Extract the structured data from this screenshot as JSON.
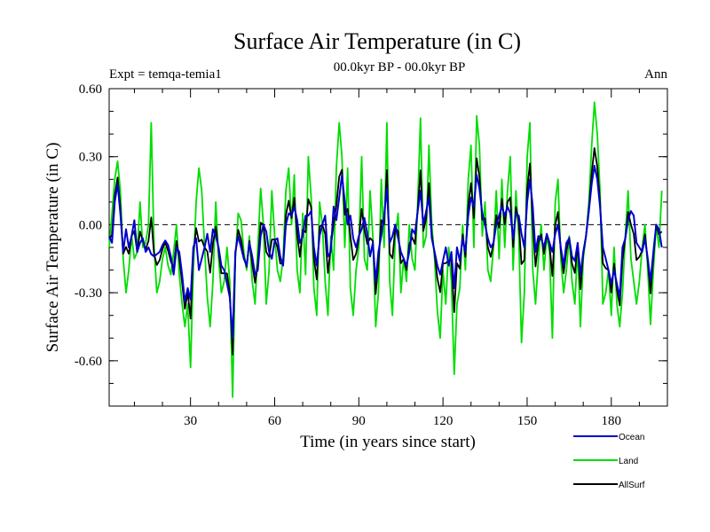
{
  "chart_data": {
    "type": "line",
    "title": "Surface Air Temperature (in C)",
    "subtitle": "00.0kyr BP - 00.0kyr BP",
    "left_label": "Expt = temqa-temia1",
    "right_label": "Ann",
    "xlabel": "Time (in years since start)",
    "ylabel": "Surface Air Temperature (in C)",
    "xlim": [
      1,
      200
    ],
    "ylim": [
      -0.8,
      0.6
    ],
    "xticks": [
      30,
      60,
      90,
      120,
      150,
      180
    ],
    "yticks": [
      0.6,
      0.3,
      0.0,
      -0.3,
      -0.6
    ],
    "ytick_labels": [
      "0.60",
      "0.30",
      "0.00",
      "-0.30",
      "-0.60"
    ],
    "reference_line": 0.0,
    "legend_position": "bottom-right",
    "series": [
      {
        "name": "Ocean",
        "color": "#0000cc"
      },
      {
        "name": "Land",
        "color": "#00dd00"
      },
      {
        "name": "AllSurf",
        "color": "#000000"
      }
    ],
    "x": [
      1,
      2,
      3,
      4,
      5,
      6,
      7,
      8,
      9,
      10,
      11,
      12,
      13,
      14,
      15,
      16,
      17,
      18,
      19,
      20,
      21,
      22,
      23,
      24,
      25,
      26,
      27,
      28,
      29,
      30,
      31,
      32,
      33,
      34,
      35,
      36,
      37,
      38,
      39,
      40,
      41,
      42,
      43,
      44,
      45,
      46,
      47,
      48,
      49,
      50,
      51,
      52,
      53,
      54,
      55,
      56,
      57,
      58,
      59,
      60,
      61,
      62,
      63,
      64,
      65,
      66,
      67,
      68,
      69,
      70,
      71,
      72,
      73,
      74,
      75,
      76,
      77,
      78,
      79,
      80,
      81,
      82,
      83,
      84,
      85,
      86,
      87,
      88,
      89,
      90,
      91,
      92,
      93,
      94,
      95,
      96,
      97,
      98,
      99,
      100,
      101,
      102,
      103,
      104,
      105,
      106,
      107,
      108,
      109,
      110,
      111,
      112,
      113,
      114,
      115,
      116,
      117,
      118,
      119,
      120,
      121,
      122,
      123,
      124,
      125,
      126,
      127,
      128,
      129,
      130,
      131,
      132,
      133,
      134,
      135,
      136,
      137,
      138,
      139,
      140,
      141,
      142,
      143,
      144,
      145,
      146,
      147,
      148,
      149,
      150,
      151,
      152,
      153,
      154,
      155,
      156,
      157,
      158,
      159,
      160,
      161,
      162,
      163,
      164,
      165,
      166,
      167,
      168,
      169,
      170,
      171,
      172,
      173,
      174,
      175,
      176,
      177,
      178,
      179,
      180,
      181,
      182,
      183,
      184,
      185,
      186,
      187,
      188,
      189,
      190,
      191,
      192,
      193,
      194,
      195,
      196,
      197,
      198,
      199,
      200
    ],
    "values": {
      "Ocean": [
        -0.05,
        -0.08,
        0.1,
        0.18,
        0.05,
        -0.12,
        -0.02,
        -0.1,
        -0.05,
        0.02,
        -0.12,
        -0.08,
        -0.06,
        -0.12,
        -0.1,
        -0.13,
        -0.14,
        -0.13,
        -0.12,
        -0.09,
        -0.07,
        -0.09,
        -0.14,
        -0.22,
        -0.1,
        -0.12,
        -0.22,
        -0.34,
        -0.28,
        -0.33,
        -0.1,
        -0.06,
        -0.2,
        -0.15,
        -0.1,
        -0.04,
        -0.12,
        -0.02,
        -0.05,
        -0.1,
        -0.18,
        -0.2,
        -0.26,
        -0.32,
        -0.5,
        -0.12,
        -0.05,
        -0.1,
        -0.15,
        -0.18,
        -0.08,
        -0.14,
        -0.22,
        -0.2,
        -0.05,
        0.0,
        -0.03,
        -0.12,
        -0.15,
        -0.07,
        -0.06,
        -0.14,
        -0.18,
        0.0,
        0.05,
        0.04,
        0.08,
        0.02,
        -0.08,
        -0.05,
        0.04,
        0.04,
        0.06,
        -0.1,
        -0.18,
        -0.05,
        0.0,
        0.04,
        -0.14,
        -0.12,
        0.08,
        0.02,
        0.12,
        0.22,
        0.1,
        0.0,
        0.04,
        -0.06,
        -0.1,
        -0.05,
        -0.02,
        0.03,
        -0.04,
        -0.14,
        -0.08,
        -0.25,
        -0.12,
        -0.05,
        0.04,
        0.16,
        -0.08,
        -0.05,
        0.0,
        -0.06,
        -0.12,
        -0.15,
        -0.18,
        -0.12,
        -0.02,
        -0.04,
        0.06,
        0.15,
        0.0,
        0.06,
        0.12,
        -0.06,
        -0.12,
        -0.18,
        -0.22,
        -0.16,
        -0.1,
        -0.18,
        -0.12,
        -0.28,
        -0.1,
        -0.16,
        -0.06,
        -0.12,
        0.04,
        0.12,
        0.08,
        0.22,
        0.16,
        0.05,
        0.0,
        -0.06,
        -0.1,
        -0.08,
        0.0,
        0.04,
        0.08,
        0.04,
        0.08,
        0.05,
        -0.06,
        0.05,
        0.04,
        -0.04,
        -0.1,
        0.1,
        0.2,
        0.08,
        -0.12,
        -0.05,
        -0.06,
        -0.1,
        -0.04,
        -0.08,
        -0.12,
        -0.04,
        0.0,
        -0.1,
        -0.18,
        -0.08,
        -0.06,
        -0.14,
        -0.16,
        -0.08,
        -0.22,
        -0.12,
        -0.05,
        0.06,
        0.18,
        0.26,
        0.2,
        0.08,
        -0.1,
        -0.15,
        -0.2,
        -0.26,
        -0.2,
        -0.26,
        -0.32,
        -0.1,
        -0.06,
        0.02,
        0.06,
        0.04,
        -0.08,
        -0.1,
        -0.12,
        -0.06,
        -0.15,
        -0.25,
        -0.12,
        0.0,
        -0.02,
        -0.1
      ],
      "Land": [
        -0.1,
        0.05,
        0.2,
        0.28,
        0.15,
        -0.15,
        -0.3,
        -0.2,
        -0.05,
        -0.15,
        -0.12,
        0.1,
        -0.1,
        -0.08,
        0.0,
        0.45,
        -0.1,
        -0.3,
        -0.25,
        -0.15,
        -0.1,
        -0.18,
        -0.22,
        -0.12,
        0.0,
        -0.22,
        -0.35,
        -0.45,
        -0.35,
        -0.63,
        -0.2,
        0.1,
        0.25,
        0.15,
        -0.1,
        -0.32,
        -0.45,
        -0.25,
        0.1,
        -0.15,
        -0.3,
        -0.25,
        -0.1,
        -0.25,
        -0.76,
        -0.15,
        0.05,
        0.02,
        -0.12,
        -0.2,
        -0.05,
        -0.25,
        -0.35,
        -0.1,
        0.16,
        0.0,
        -0.35,
        -0.2,
        0.15,
        -0.05,
        -0.2,
        -0.25,
        -0.15,
        0.15,
        0.25,
        0.0,
        0.22,
        -0.2,
        -0.3,
        0.05,
        -0.22,
        0.3,
        0.12,
        -0.28,
        -0.4,
        0.1,
        0.0,
        -0.25,
        -0.4,
        -0.05,
        -0.2,
        0.25,
        0.45,
        0.3,
        -0.1,
        0.25,
        -0.28,
        -0.4,
        -0.2,
        -0.1,
        0.3,
        -0.15,
        -0.2,
        0.15,
        -0.05,
        -0.45,
        -0.3,
        0.2,
        -0.1,
        0.45,
        -0.25,
        -0.4,
        -0.05,
        0.05,
        -0.3,
        -0.15,
        -0.25,
        0.0,
        -0.15,
        -0.2,
        0.1,
        0.47,
        -0.1,
        -0.05,
        0.35,
        0.0,
        -0.15,
        -0.38,
        -0.5,
        -0.2,
        -0.35,
        -0.1,
        -0.25,
        -0.66,
        -0.35,
        -0.28,
        0.0,
        -0.2,
        0.2,
        0.35,
        -0.1,
        0.48,
        0.35,
        -0.05,
        0.1,
        -0.2,
        -0.25,
        -0.1,
        0.15,
        -0.15,
        0.2,
        -0.1,
        0.15,
        0.3,
        -0.2,
        0.15,
        -0.05,
        -0.52,
        -0.3,
        0.3,
        0.45,
        -0.2,
        -0.35,
        -0.15,
        0.0,
        -0.2,
        -0.05,
        -0.12,
        -0.5,
        0.1,
        0.2,
        -0.15,
        -0.3,
        -0.2,
        -0.05,
        -0.25,
        -0.35,
        -0.1,
        -0.45,
        -0.15,
        -0.05,
        0.1,
        0.35,
        0.54,
        0.4,
        0.15,
        -0.35,
        -0.3,
        -0.2,
        -0.4,
        -0.1,
        -0.35,
        -0.45,
        -0.3,
        -0.05,
        0.15,
        -0.15,
        -0.25,
        -0.35,
        -0.25,
        -0.1,
        0.0,
        -0.2,
        -0.44,
        -0.2,
        0.0,
        -0.1,
        0.15
      ]
    }
  },
  "legend": {
    "ocean": "Ocean",
    "land": "Land",
    "allsurf": "AllSurf"
  }
}
